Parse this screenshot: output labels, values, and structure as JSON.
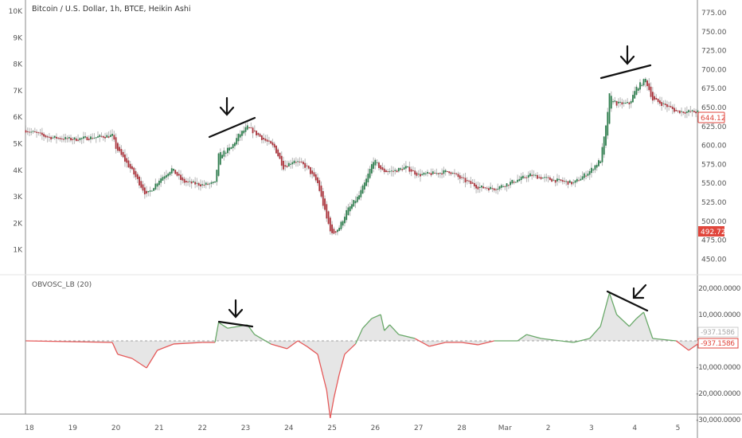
{
  "header": {
    "title": "Bitcoin / U.S. Dollar, 1h, BTCE, Heikin Ashi"
  },
  "indicator": {
    "title": "OBVOSC_LB (20)"
  },
  "colors": {
    "up": "#2f7d4e",
    "down": "#a8323a",
    "wick": "#b5b5b5",
    "osc_up": "#6aa96a",
    "osc_down": "#e55a5a",
    "osc_fill": "#e6e6e6",
    "price_label": "#e0463c"
  },
  "chart_data": [
    {
      "type": "candlestick",
      "style": "Heikin Ashi",
      "interval": "1h",
      "left_axis_ticks": [
        "10K",
        "9K",
        "8K",
        "7K",
        "6K",
        "5K",
        "4K",
        "3K",
        "2K",
        "1K"
      ],
      "right_axis_ticks": [
        "775.00",
        "750.00",
        "725.00",
        "700.00",
        "675.00",
        "650.00",
        "625.00",
        "600.00",
        "575.00",
        "550.00",
        "525.00",
        "500.00",
        "475.00",
        "450.00"
      ],
      "ylim": [
        440,
        790
      ],
      "x_ticks": [
        "18",
        "19",
        "20",
        "21",
        "22",
        "23",
        "24",
        "25",
        "26",
        "27",
        "28",
        "Mar",
        "2",
        "3",
        "4",
        "5"
      ],
      "last_price": "644.12",
      "marker_price": "492.72",
      "close_path": [
        [
          "Feb 17 22:00",
          620
        ],
        [
          "Feb 18 10:00",
          611
        ],
        [
          "Feb 19 00:00",
          608
        ],
        [
          "Feb 19 22:00",
          613
        ],
        [
          "Feb 20 00:00",
          597
        ],
        [
          "Feb 20 09:00",
          566
        ],
        [
          "Feb 20 17:00",
          534
        ],
        [
          "Feb 21 00:00",
          555
        ],
        [
          "Feb 21 07:00",
          569
        ],
        [
          "Feb 21 13:00",
          552
        ],
        [
          "Feb 22 00:00",
          548
        ],
        [
          "Feb 22 07:00",
          550
        ],
        [
          "Feb 22 09:00",
          587
        ],
        [
          "Feb 22 16:00",
          597
        ],
        [
          "Feb 22 20:00",
          613
        ],
        [
          "Feb 23 01:00",
          624
        ],
        [
          "Feb 23 10:00",
          608
        ],
        [
          "Feb 23 16:00",
          597
        ],
        [
          "Feb 23 21:00",
          571
        ],
        [
          "Feb 24 03:00",
          581
        ],
        [
          "Feb 24 10:00",
          571
        ],
        [
          "Feb 24 16:00",
          550
        ],
        [
          "Feb 24 21:00",
          503
        ],
        [
          "Feb 25 00:00",
          482
        ],
        [
          "Feb 25 04:00",
          492
        ],
        [
          "Feb 25 08:00",
          513
        ],
        [
          "Feb 25 15:00",
          534
        ],
        [
          "Feb 25 19:00",
          555
        ],
        [
          "Feb 25 23:00",
          581
        ],
        [
          "Feb 26 04:00",
          566
        ],
        [
          "Feb 26 10:00",
          566
        ],
        [
          "Feb 26 17:00",
          571
        ],
        [
          "Feb 27 00:00",
          561
        ],
        [
          "Feb 27 09:00",
          563
        ],
        [
          "Feb 27 17:00",
          566
        ],
        [
          "Feb 28 00:00",
          555
        ],
        [
          "Feb 28 09:00",
          545
        ],
        [
          "Feb 28 18:00",
          543
        ],
        [
          "Mar 1 02:00",
          550
        ],
        [
          "Mar 1 14:00",
          561
        ],
        [
          "Mar 2 01:00",
          555
        ],
        [
          "Mar 2 14:00",
          550
        ],
        [
          "Mar 2 23:00",
          566
        ],
        [
          "Mar 3 05:00",
          581
        ],
        [
          "Mar 3 08:00",
          624
        ],
        [
          "Mar 3 10:00",
          666
        ],
        [
          "Mar 3 14:00",
          655
        ],
        [
          "Mar 3 21:00",
          655
        ],
        [
          "Mar 4 01:00",
          676
        ],
        [
          "Mar 4 06:00",
          687
        ],
        [
          "Mar 4 10:00",
          660
        ],
        [
          "Mar 4 17:00",
          653
        ],
        [
          "Mar 4 23:00",
          645
        ],
        [
          "Mar 5 11:00",
          644
        ]
      ]
    },
    {
      "type": "area",
      "name": "OBVOSC_LB (20)",
      "axis_ticks": [
        "20,000.0000",
        "10,000.0000",
        "-10,000.0000",
        "-20,000.0000",
        "-30,000.0000"
      ],
      "ylim": [
        -31500,
        24000
      ],
      "last_value": "-937.1586",
      "last_value_ghost": "-937.1586",
      "points": [
        [
          "Feb 17 22:00",
          0
        ],
        [
          "Feb 19 22:00",
          -600
        ],
        [
          "Feb 20 01:00",
          -5100
        ],
        [
          "Feb 20 09:00",
          -6700
        ],
        [
          "Feb 20 17:00",
          -10300
        ],
        [
          "Feb 20 23:00",
          -3600
        ],
        [
          "Feb 21 08:00",
          -1200
        ],
        [
          "Feb 22 00:00",
          -600
        ],
        [
          "Feb 22 07:00",
          -600
        ],
        [
          "Feb 22 09:00",
          7000
        ],
        [
          "Feb 22 14:00",
          4800
        ],
        [
          "Feb 22 20:00",
          5500
        ],
        [
          "Feb 23 01:00",
          6100
        ],
        [
          "Feb 23 05:00",
          2400
        ],
        [
          "Feb 23 14:00",
          -1200
        ],
        [
          "Feb 23 23:00",
          -3000
        ],
        [
          "Feb 24 05:00",
          0
        ],
        [
          "Feb 24 10:00",
          -2100
        ],
        [
          "Feb 24 16:00",
          -5100
        ],
        [
          "Feb 24 21:00",
          -18800
        ],
        [
          "Feb 24 23:00",
          -29400
        ],
        [
          "Feb 25 01:00",
          -21800
        ],
        [
          "Feb 25 04:00",
          -12700
        ],
        [
          "Feb 25 07:00",
          -5100
        ],
        [
          "Feb 25 13:00",
          -1200
        ],
        [
          "Feb 25 17:00",
          4800
        ],
        [
          "Feb 25 22:00",
          8500
        ],
        [
          "Feb 26 03:00",
          10000
        ],
        [
          "Feb 26 05:00",
          3900
        ],
        [
          "Feb 26 08:00",
          6100
        ],
        [
          "Feb 26 13:00",
          2400
        ],
        [
          "Feb 26 22:00",
          900
        ],
        [
          "Feb 27 06:00",
          -2100
        ],
        [
          "Feb 27 15:00",
          -600
        ],
        [
          "Feb 28 00:00",
          -600
        ],
        [
          "Feb 28 09:00",
          -1500
        ],
        [
          "Feb 28 18:00",
          0
        ],
        [
          "Mar 1 07:00",
          0
        ],
        [
          "Mar 1 12:00",
          2400
        ],
        [
          "Mar 1 20:00",
          900
        ],
        [
          "Mar 2 14:00",
          -600
        ],
        [
          "Mar 2 23:00",
          900
        ],
        [
          "Mar 3 05:00",
          5500
        ],
        [
          "Mar 3 10:00",
          18200
        ],
        [
          "Mar 3 14:00",
          10000
        ],
        [
          "Mar 3 21:00",
          5500
        ],
        [
          "Mar 4 01:00",
          8500
        ],
        [
          "Mar 4 05:00",
          10900
        ],
        [
          "Mar 4 10:00",
          900
        ],
        [
          "Mar 4 23:00",
          0
        ],
        [
          "Mar 5 06:00",
          -3600
        ],
        [
          "Mar 5 11:00",
          -1200
        ]
      ]
    }
  ]
}
